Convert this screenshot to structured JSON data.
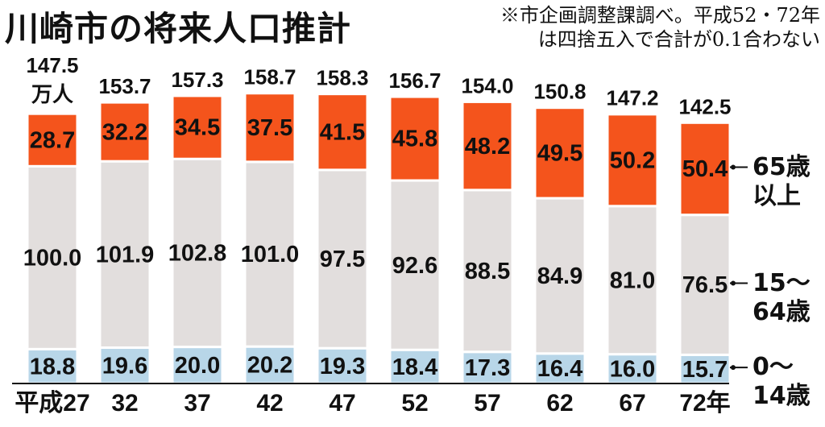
{
  "chart_data": {
    "type": "stacked-bar",
    "title": "川崎市の将来人口推計",
    "note": "※市企画調整課調べ。平成52・72年\nは四捨五入で合計が0.1合わない",
    "unit": "万人",
    "categories": [
      "平成27",
      "32",
      "37",
      "42",
      "47",
      "52",
      "57",
      "62",
      "67",
      "72年"
    ],
    "series": [
      {
        "name": "0〜\n14歳",
        "color": "#b8d6e8",
        "values": [
          18.8,
          19.6,
          20.0,
          20.2,
          19.3,
          18.4,
          17.3,
          16.4,
          16.0,
          15.7
        ],
        "value_labels": [
          "18.8",
          "19.6",
          "20.0",
          "20.2",
          "19.3",
          "18.4",
          "17.3",
          "16.4",
          "16.0",
          "15.7"
        ]
      },
      {
        "name": "15〜\n64歳",
        "color": "#e2dedd",
        "values": [
          100.0,
          101.9,
          102.8,
          101.0,
          97.5,
          92.6,
          88.5,
          84.9,
          81.0,
          76.5
        ],
        "value_labels": [
          "100.0",
          "101.9",
          "102.8",
          "101.0",
          "97.5",
          "92.6",
          "88.5",
          "84.9",
          "81.0",
          "76.5"
        ]
      },
      {
        "name": "65歳\n以上",
        "color": "#f4541c",
        "values": [
          28.7,
          32.2,
          34.5,
          37.5,
          41.5,
          45.8,
          48.2,
          49.5,
          50.2,
          50.4
        ],
        "value_labels": [
          "28.7",
          "32.2",
          "34.5",
          "37.5",
          "41.5",
          "45.8",
          "48.2",
          "49.5",
          "50.2",
          "50.4"
        ]
      }
    ],
    "totals": {
      "values": [
        147.5,
        153.7,
        157.3,
        158.7,
        158.3,
        156.7,
        154.0,
        150.8,
        147.2,
        142.5
      ],
      "value_labels": [
        "147.5",
        "153.7",
        "157.3",
        "158.7",
        "158.3",
        "156.7",
        "154.0",
        "150.8",
        "147.2",
        "142.5"
      ]
    }
  }
}
